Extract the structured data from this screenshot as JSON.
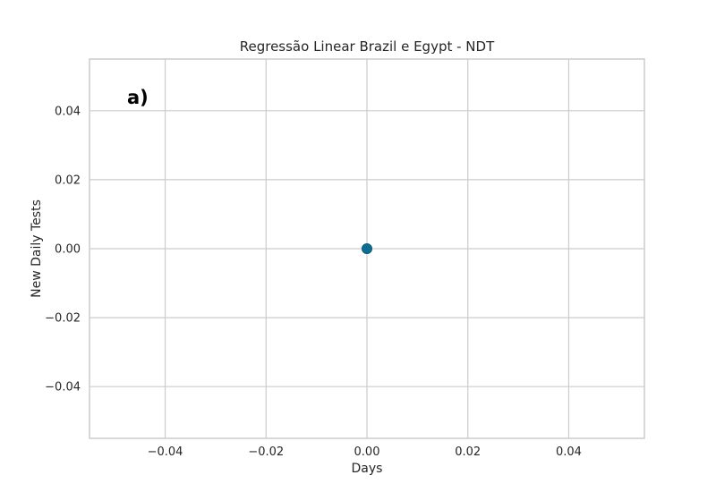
{
  "chart_data": {
    "type": "scatter",
    "title": "Regressão Linear Brazil e Egypt - NDT",
    "xlabel": "Days",
    "ylabel": "New Daily Tests",
    "panel_label": "a)",
    "xlim": [
      -0.055,
      0.055
    ],
    "ylim": [
      -0.055,
      0.055
    ],
    "x_ticks": [
      -0.04,
      -0.02,
      0.0,
      0.02,
      0.04
    ],
    "y_ticks": [
      -0.04,
      -0.02,
      0.0,
      0.02,
      0.04
    ],
    "x_tick_labels": [
      "−0.04",
      "−0.02",
      "0.00",
      "0.02",
      "0.04"
    ],
    "y_tick_labels": [
      "−0.04",
      "−0.02",
      "0.00",
      "0.02",
      "0.04"
    ],
    "grid": true,
    "series": [
      {
        "x": [
          0.0
        ],
        "y": [
          0.0
        ],
        "color": "#0e6e91"
      }
    ]
  }
}
